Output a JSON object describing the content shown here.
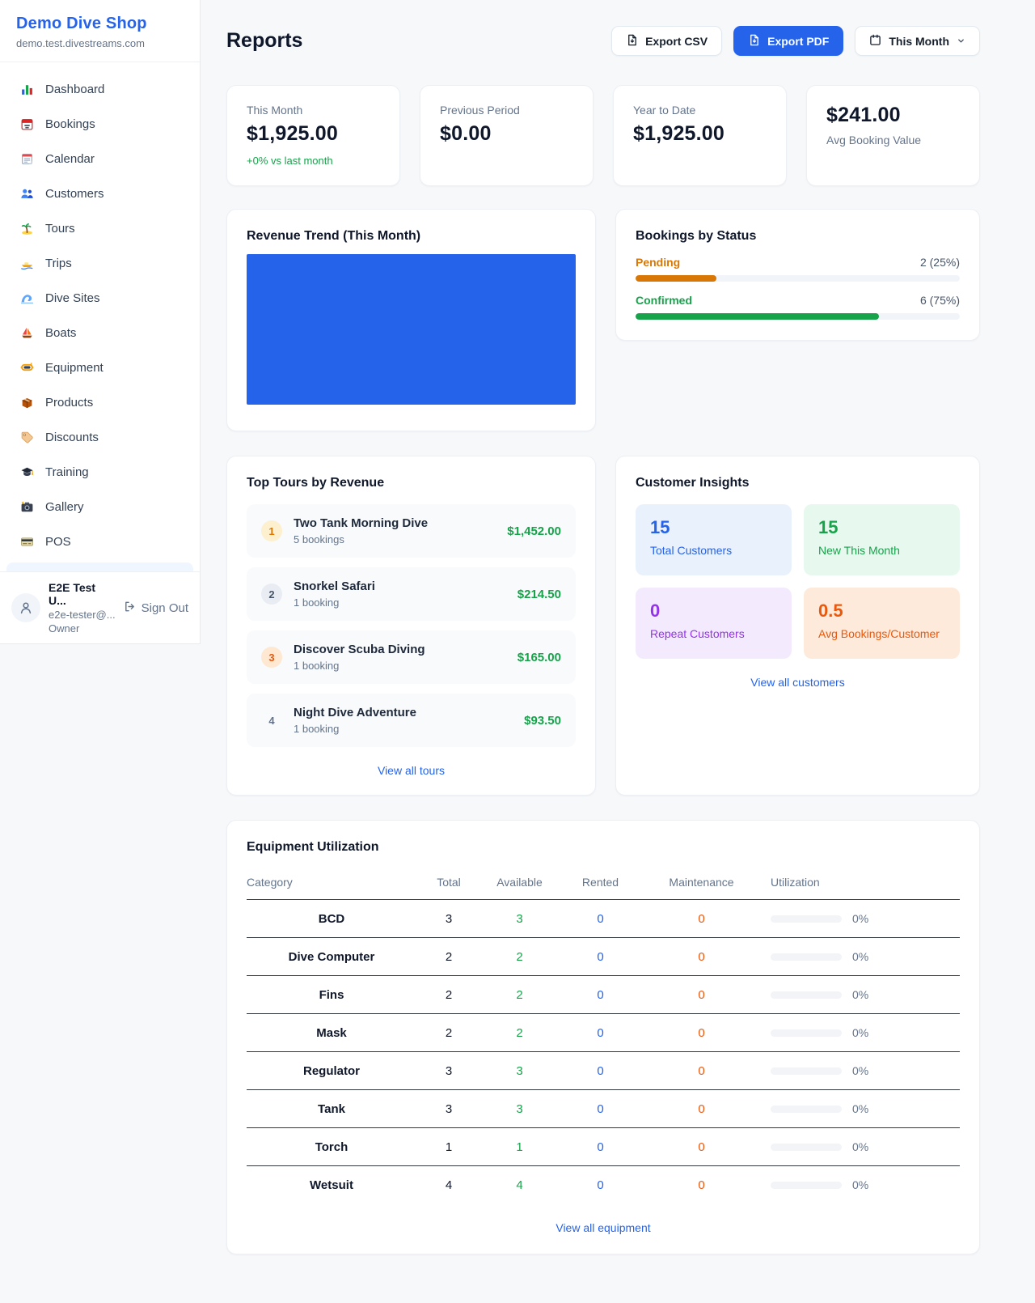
{
  "sidebar": {
    "brand": {
      "name": "Demo Dive Shop",
      "domain": "demo.test.divestreams.com"
    },
    "items": [
      {
        "icon": "dashboard-icon",
        "label": "Dashboard"
      },
      {
        "icon": "bookings-icon",
        "label": "Bookings"
      },
      {
        "icon": "calendar-icon",
        "label": "Calendar"
      },
      {
        "icon": "customers-icon",
        "label": "Customers"
      },
      {
        "icon": "tours-icon",
        "label": "Tours"
      },
      {
        "icon": "trips-icon",
        "label": "Trips"
      },
      {
        "icon": "dive-sites-icon",
        "label": "Dive Sites"
      },
      {
        "icon": "boats-icon",
        "label": "Boats"
      },
      {
        "icon": "equipment-icon",
        "label": "Equipment"
      },
      {
        "icon": "products-icon",
        "label": "Products"
      },
      {
        "icon": "discounts-icon",
        "label": "Discounts"
      },
      {
        "icon": "training-icon",
        "label": "Training"
      },
      {
        "icon": "gallery-icon",
        "label": "Gallery"
      },
      {
        "icon": "pos-icon",
        "label": "POS"
      }
    ],
    "user": {
      "name": "E2E Test U...",
      "email": "e2e-tester@...",
      "role": "Owner",
      "sign_out": "Sign Out"
    }
  },
  "header": {
    "title": "Reports",
    "export_csv": "Export CSV",
    "export_pdf": "Export PDF",
    "period": "This Month"
  },
  "stats": {
    "this_month": {
      "label": "This Month",
      "value": "$1,925.00",
      "delta": "+0% vs last month"
    },
    "previous_period": {
      "label": "Previous Period",
      "value": "$0.00"
    },
    "year_to_date": {
      "label": "Year to Date",
      "value": "$1,925.00"
    },
    "avg_booking": {
      "value": "$241.00",
      "label": "Avg Booking Value"
    }
  },
  "revenue_trend": {
    "title": "Revenue Trend (This Month)",
    "bar_color": "#2563eb"
  },
  "bookings_by_status": {
    "title": "Bookings by Status",
    "rows": [
      {
        "label": "Pending",
        "count": "2 (25%)",
        "percent": 25,
        "color": "#d97706"
      },
      {
        "label": "Confirmed",
        "count": "6 (75%)",
        "percent": 75,
        "color": "#16a34a"
      }
    ]
  },
  "top_tours": {
    "title": "Top Tours by Revenue",
    "items": [
      {
        "rank": "1",
        "name": "Two Tank Morning Dive",
        "bookings": "5 bookings",
        "amount": "$1,452.00"
      },
      {
        "rank": "2",
        "name": "Snorkel Safari",
        "bookings": "1 booking",
        "amount": "$214.50"
      },
      {
        "rank": "3",
        "name": "Discover Scuba Diving",
        "bookings": "1 booking",
        "amount": "$165.00"
      },
      {
        "rank": "4",
        "name": "Night Dive Adventure",
        "bookings": "1 booking",
        "amount": "$93.50"
      }
    ],
    "view_all": "View all tours"
  },
  "customer_insights": {
    "title": "Customer Insights",
    "tiles": [
      {
        "value": "15",
        "label": "Total Customers",
        "theme": "blue"
      },
      {
        "value": "15",
        "label": "New This Month",
        "theme": "green"
      },
      {
        "value": "0",
        "label": "Repeat Customers",
        "theme": "purple"
      },
      {
        "value": "0.5",
        "label": "Avg Bookings/Customer",
        "theme": "orange"
      }
    ],
    "view_all": "View all customers"
  },
  "equipment": {
    "title": "Equipment Utilization",
    "columns": [
      "Category",
      "Total",
      "Available",
      "Rented",
      "Maintenance",
      "Utilization"
    ],
    "rows": [
      {
        "category": "BCD",
        "total": "3",
        "available": "3",
        "rented": "0",
        "maintenance": "0",
        "utilization": "0%"
      },
      {
        "category": "Dive Computer",
        "total": "2",
        "available": "2",
        "rented": "0",
        "maintenance": "0",
        "utilization": "0%"
      },
      {
        "category": "Fins",
        "total": "2",
        "available": "2",
        "rented": "0",
        "maintenance": "0",
        "utilization": "0%"
      },
      {
        "category": "Mask",
        "total": "2",
        "available": "2",
        "rented": "0",
        "maintenance": "0",
        "utilization": "0%"
      },
      {
        "category": "Regulator",
        "total": "3",
        "available": "3",
        "rented": "0",
        "maintenance": "0",
        "utilization": "0%"
      },
      {
        "category": "Tank",
        "total": "3",
        "available": "3",
        "rented": "0",
        "maintenance": "0",
        "utilization": "0%"
      },
      {
        "category": "Torch",
        "total": "1",
        "available": "1",
        "rented": "0",
        "maintenance": "0",
        "utilization": "0%"
      },
      {
        "category": "Wetsuit",
        "total": "4",
        "available": "4",
        "rented": "0",
        "maintenance": "0",
        "utilization": "0%"
      }
    ],
    "view_all": "View all equipment"
  },
  "colors": {
    "accent_blue": "#2563eb",
    "green": "#16a34a",
    "pending_orange": "#d97706",
    "insight_purple": "#9333ea",
    "insight_orange": "#ea580c"
  },
  "chart_data": [
    {
      "type": "bar",
      "title": "Revenue Trend (This Month)",
      "categories": [
        ""
      ],
      "values": [
        1925
      ],
      "ylabel": "",
      "xlabel": "",
      "legend": false,
      "note": "single solid blue bar filling the whole plot area, no visible axes or tick labels",
      "color": "#2563eb"
    },
    {
      "type": "bar",
      "title": "Bookings by Status",
      "categories": [
        "Pending",
        "Confirmed"
      ],
      "values": [
        2,
        6
      ],
      "percent": [
        25,
        75
      ],
      "colors": [
        "#d97706",
        "#16a34a"
      ],
      "legend": false
    }
  ]
}
